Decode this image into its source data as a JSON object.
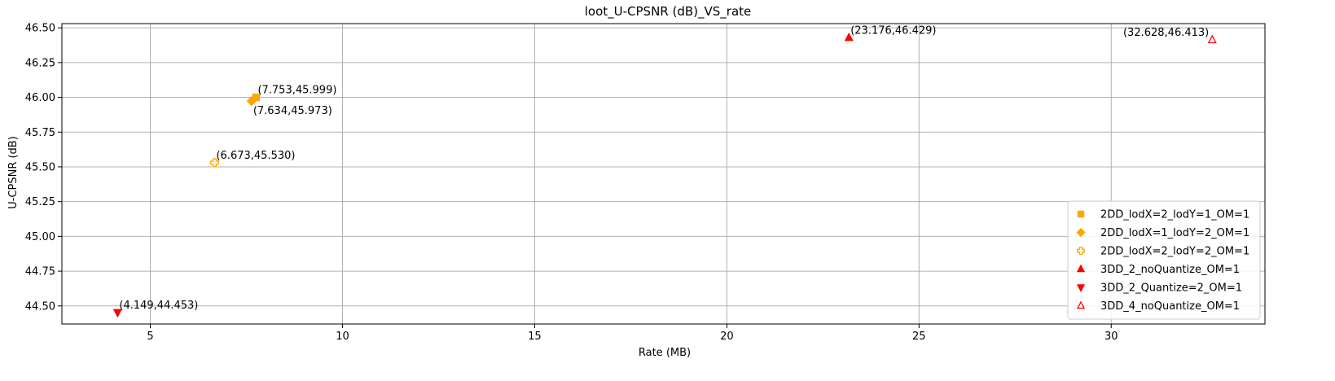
{
  "chart_data": {
    "type": "scatter",
    "title": "loot_U-CPSNR (dB)_VS_rate",
    "xlabel": "Rate (MB)",
    "ylabel": "U-CPSNR (dB)",
    "xlim": [
      2.7,
      34.0
    ],
    "ylim": [
      44.37,
      46.53
    ],
    "xticks": [
      5,
      10,
      15,
      20,
      25,
      30
    ],
    "yticks": [
      44.5,
      44.75,
      45.0,
      45.25,
      45.5,
      45.75,
      46.0,
      46.25,
      46.5
    ],
    "xtick_labels": [
      "5",
      "10",
      "15",
      "20",
      "25",
      "30"
    ],
    "ytick_labels": [
      "44.50",
      "44.75",
      "45.00",
      "45.25",
      "45.50",
      "45.75",
      "46.00",
      "46.25",
      "46.50"
    ],
    "grid": true,
    "legend_position": "lower-right",
    "series": [
      {
        "name": "2DD_lodX=2_lodY=1_OM=1",
        "marker": "square",
        "color": "#ffa500",
        "filled": true,
        "x": 7.753,
        "y": 45.999,
        "label": "(7.753,45.999)",
        "label_side": "above-right"
      },
      {
        "name": "2DD_lodX=1_lodY=2_OM=1",
        "marker": "diamond",
        "color": "#ffa500",
        "filled": true,
        "x": 7.634,
        "y": 45.973,
        "label": "(7.634,45.973)",
        "label_side": "below-right"
      },
      {
        "name": "2DD_lodX=2_lodY=2_OM=1",
        "marker": "plus-hollow",
        "color": "#ffa500",
        "filled": false,
        "x": 6.673,
        "y": 45.53,
        "label": "(6.673,45.530)",
        "label_side": "above-right"
      },
      {
        "name": "3DD_2_noQuantize_OM=1",
        "marker": "triangle-up",
        "color": "#ff0000",
        "filled": true,
        "x": 23.176,
        "y": 46.429,
        "label": "(23.176,46.429)",
        "label_side": "above-right"
      },
      {
        "name": "3DD_2_Quantize=2_OM=1",
        "marker": "triangle-down",
        "color": "#ff0000",
        "filled": true,
        "x": 4.149,
        "y": 44.453,
        "label": "(4.149,44.453)",
        "label_side": "above-right"
      },
      {
        "name": "3DD_4_noQuantize_OM=1",
        "marker": "triangle-up",
        "color": "#ff0000",
        "filled": false,
        "x": 32.628,
        "y": 46.413,
        "label": "(32.628,46.413)",
        "label_side": "above-left"
      }
    ]
  }
}
